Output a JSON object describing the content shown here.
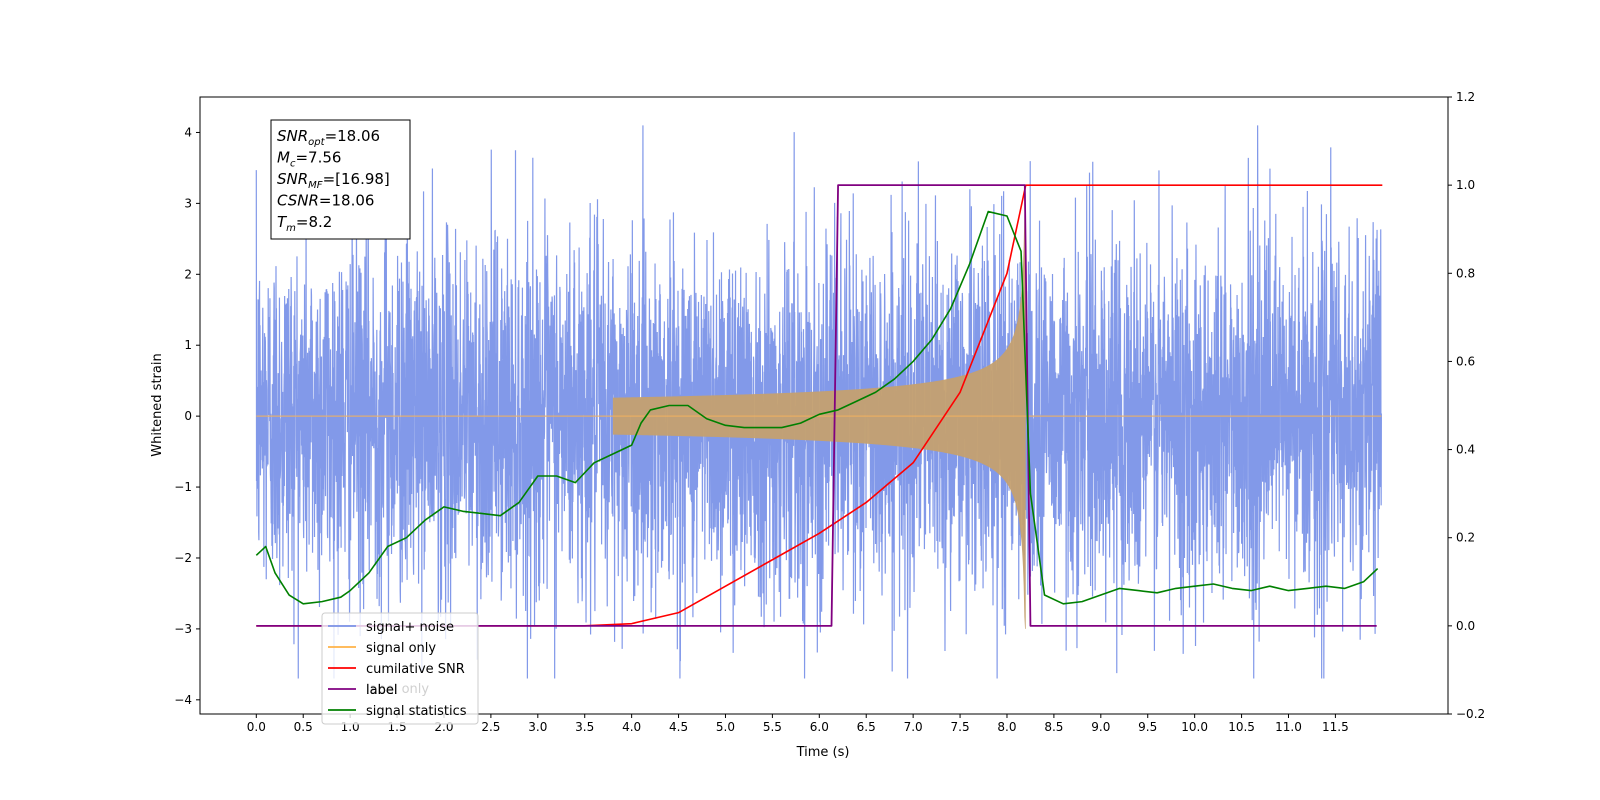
{
  "chart_data": {
    "type": "line",
    "xlabel": "Time (s)",
    "ylabel": "Whitened strain",
    "xlim": [
      -0.6,
      12.7
    ],
    "ylim": [
      -4.2,
      4.5
    ],
    "y2lim": [
      -0.2,
      1.2
    ],
    "xticks": [
      0.0,
      0.5,
      1.0,
      1.5,
      2.0,
      2.5,
      3.0,
      3.5,
      4.0,
      4.5,
      5.0,
      5.5,
      6.0,
      6.5,
      7.0,
      7.5,
      8.0,
      8.5,
      9.0,
      9.5,
      10.0,
      10.5,
      11.0,
      11.5
    ],
    "xtick_labels": [
      "0.0",
      "0.5",
      "1.0",
      "1.5",
      "2.0",
      "2.5",
      "3.0",
      "3.5",
      "4.0",
      "4.5",
      "5.0",
      "5.5",
      "6.0",
      "6.5",
      "7.0",
      "7.5",
      "8.0",
      "8.5",
      "9.0",
      "9.5",
      "10.0",
      "10.5",
      "11.0",
      "11.5"
    ],
    "yticks": [
      -4,
      -3,
      -2,
      -1,
      0,
      1,
      2,
      3,
      4
    ],
    "ytick_labels": [
      "−4",
      "−3",
      "−2",
      "−1",
      "0",
      "1",
      "2",
      "3",
      "4"
    ],
    "y2ticks": [
      -0.2,
      0.0,
      0.2,
      0.4,
      0.6,
      0.8,
      1.0,
      1.2
    ],
    "y2tick_labels": [
      "−0.2",
      "0.0",
      "0.2",
      "0.4",
      "0.6",
      "0.8",
      "1.0",
      "1.2"
    ],
    "annotation": [
      {
        "main": "SNR",
        "sub": "opt",
        "rest": "=18.06"
      },
      {
        "main": "M",
        "sub": "c",
        "rest": "=7.56"
      },
      {
        "main": "SNR",
        "sub": "MF",
        "rest": "=[16.98]"
      },
      {
        "main": "CSNR",
        "sub": "",
        "rest": "=18.06"
      },
      {
        "main": "T",
        "sub": "m",
        "rest": "=8.2"
      }
    ],
    "legend_position": "lower-left",
    "colors": {
      "noise": "#6f8ee6",
      "signal": "#c4a070",
      "cumulative_snr": "#ff0000",
      "label": "#800080",
      "statistics": "#008000"
    },
    "series": [
      {
        "name": "signal+ noise",
        "color": "#7b94e8",
        "axis": "left",
        "style": "noise",
        "x_range": [
          0.0,
          11.99
        ],
        "std": 1.25
      },
      {
        "name": "signal only",
        "color": "#ffb347",
        "axis": "left",
        "style": "chirp",
        "t_merge": 8.2,
        "amp_peak": 3.0
      },
      {
        "name": "cumilative SNR",
        "color": "#ff0000",
        "axis": "right",
        "x": [
          0.0,
          3.5,
          4.0,
          4.5,
          5.0,
          5.5,
          6.0,
          6.5,
          7.0,
          7.5,
          8.0,
          8.2,
          12.0
        ],
        "y": [
          0.0,
          0.0,
          0.005,
          0.03,
          0.09,
          0.15,
          0.21,
          0.28,
          0.37,
          0.53,
          0.8,
          1.0,
          1.0
        ]
      },
      {
        "name": "label",
        "color": "#800080",
        "axis": "right",
        "x": [
          0.0,
          6.13,
          6.2,
          8.19,
          8.25,
          11.94
        ],
        "y": [
          0.0,
          0.0,
          1.0,
          1.0,
          0.0,
          0.0
        ]
      },
      {
        "name": "label only",
        "color": "#d0d0d0",
        "axis": "right",
        "x": [],
        "y": []
      },
      {
        "name": "signal statistics",
        "color": "#008000",
        "axis": "right",
        "x": [
          0.0,
          0.1,
          0.2,
          0.35,
          0.5,
          0.7,
          0.9,
          1.0,
          1.2,
          1.4,
          1.6,
          1.8,
          2.0,
          2.2,
          2.4,
          2.6,
          2.8,
          3.0,
          3.2,
          3.4,
          3.6,
          3.8,
          4.0,
          4.1,
          4.2,
          4.4,
          4.6,
          4.8,
          5.0,
          5.2,
          5.4,
          5.6,
          5.8,
          6.0,
          6.2,
          6.4,
          6.6,
          6.8,
          7.0,
          7.2,
          7.4,
          7.6,
          7.8,
          8.0,
          8.15,
          8.25,
          8.4,
          8.6,
          8.8,
          9.0,
          9.2,
          9.4,
          9.6,
          9.8,
          10.0,
          10.2,
          10.4,
          10.6,
          10.8,
          11.0,
          11.2,
          11.4,
          11.6,
          11.8,
          11.95
        ],
        "y": [
          0.16,
          0.18,
          0.12,
          0.07,
          0.05,
          0.055,
          0.065,
          0.08,
          0.12,
          0.18,
          0.2,
          0.24,
          0.27,
          0.26,
          0.255,
          0.25,
          0.28,
          0.34,
          0.34,
          0.325,
          0.37,
          0.39,
          0.41,
          0.46,
          0.49,
          0.5,
          0.5,
          0.47,
          0.455,
          0.45,
          0.45,
          0.45,
          0.46,
          0.48,
          0.49,
          0.51,
          0.53,
          0.56,
          0.6,
          0.65,
          0.72,
          0.82,
          0.94,
          0.93,
          0.85,
          0.3,
          0.07,
          0.05,
          0.055,
          0.07,
          0.085,
          0.08,
          0.075,
          0.085,
          0.09,
          0.095,
          0.085,
          0.08,
          0.09,
          0.08,
          0.085,
          0.09,
          0.085,
          0.1,
          0.13
        ]
      }
    ]
  }
}
